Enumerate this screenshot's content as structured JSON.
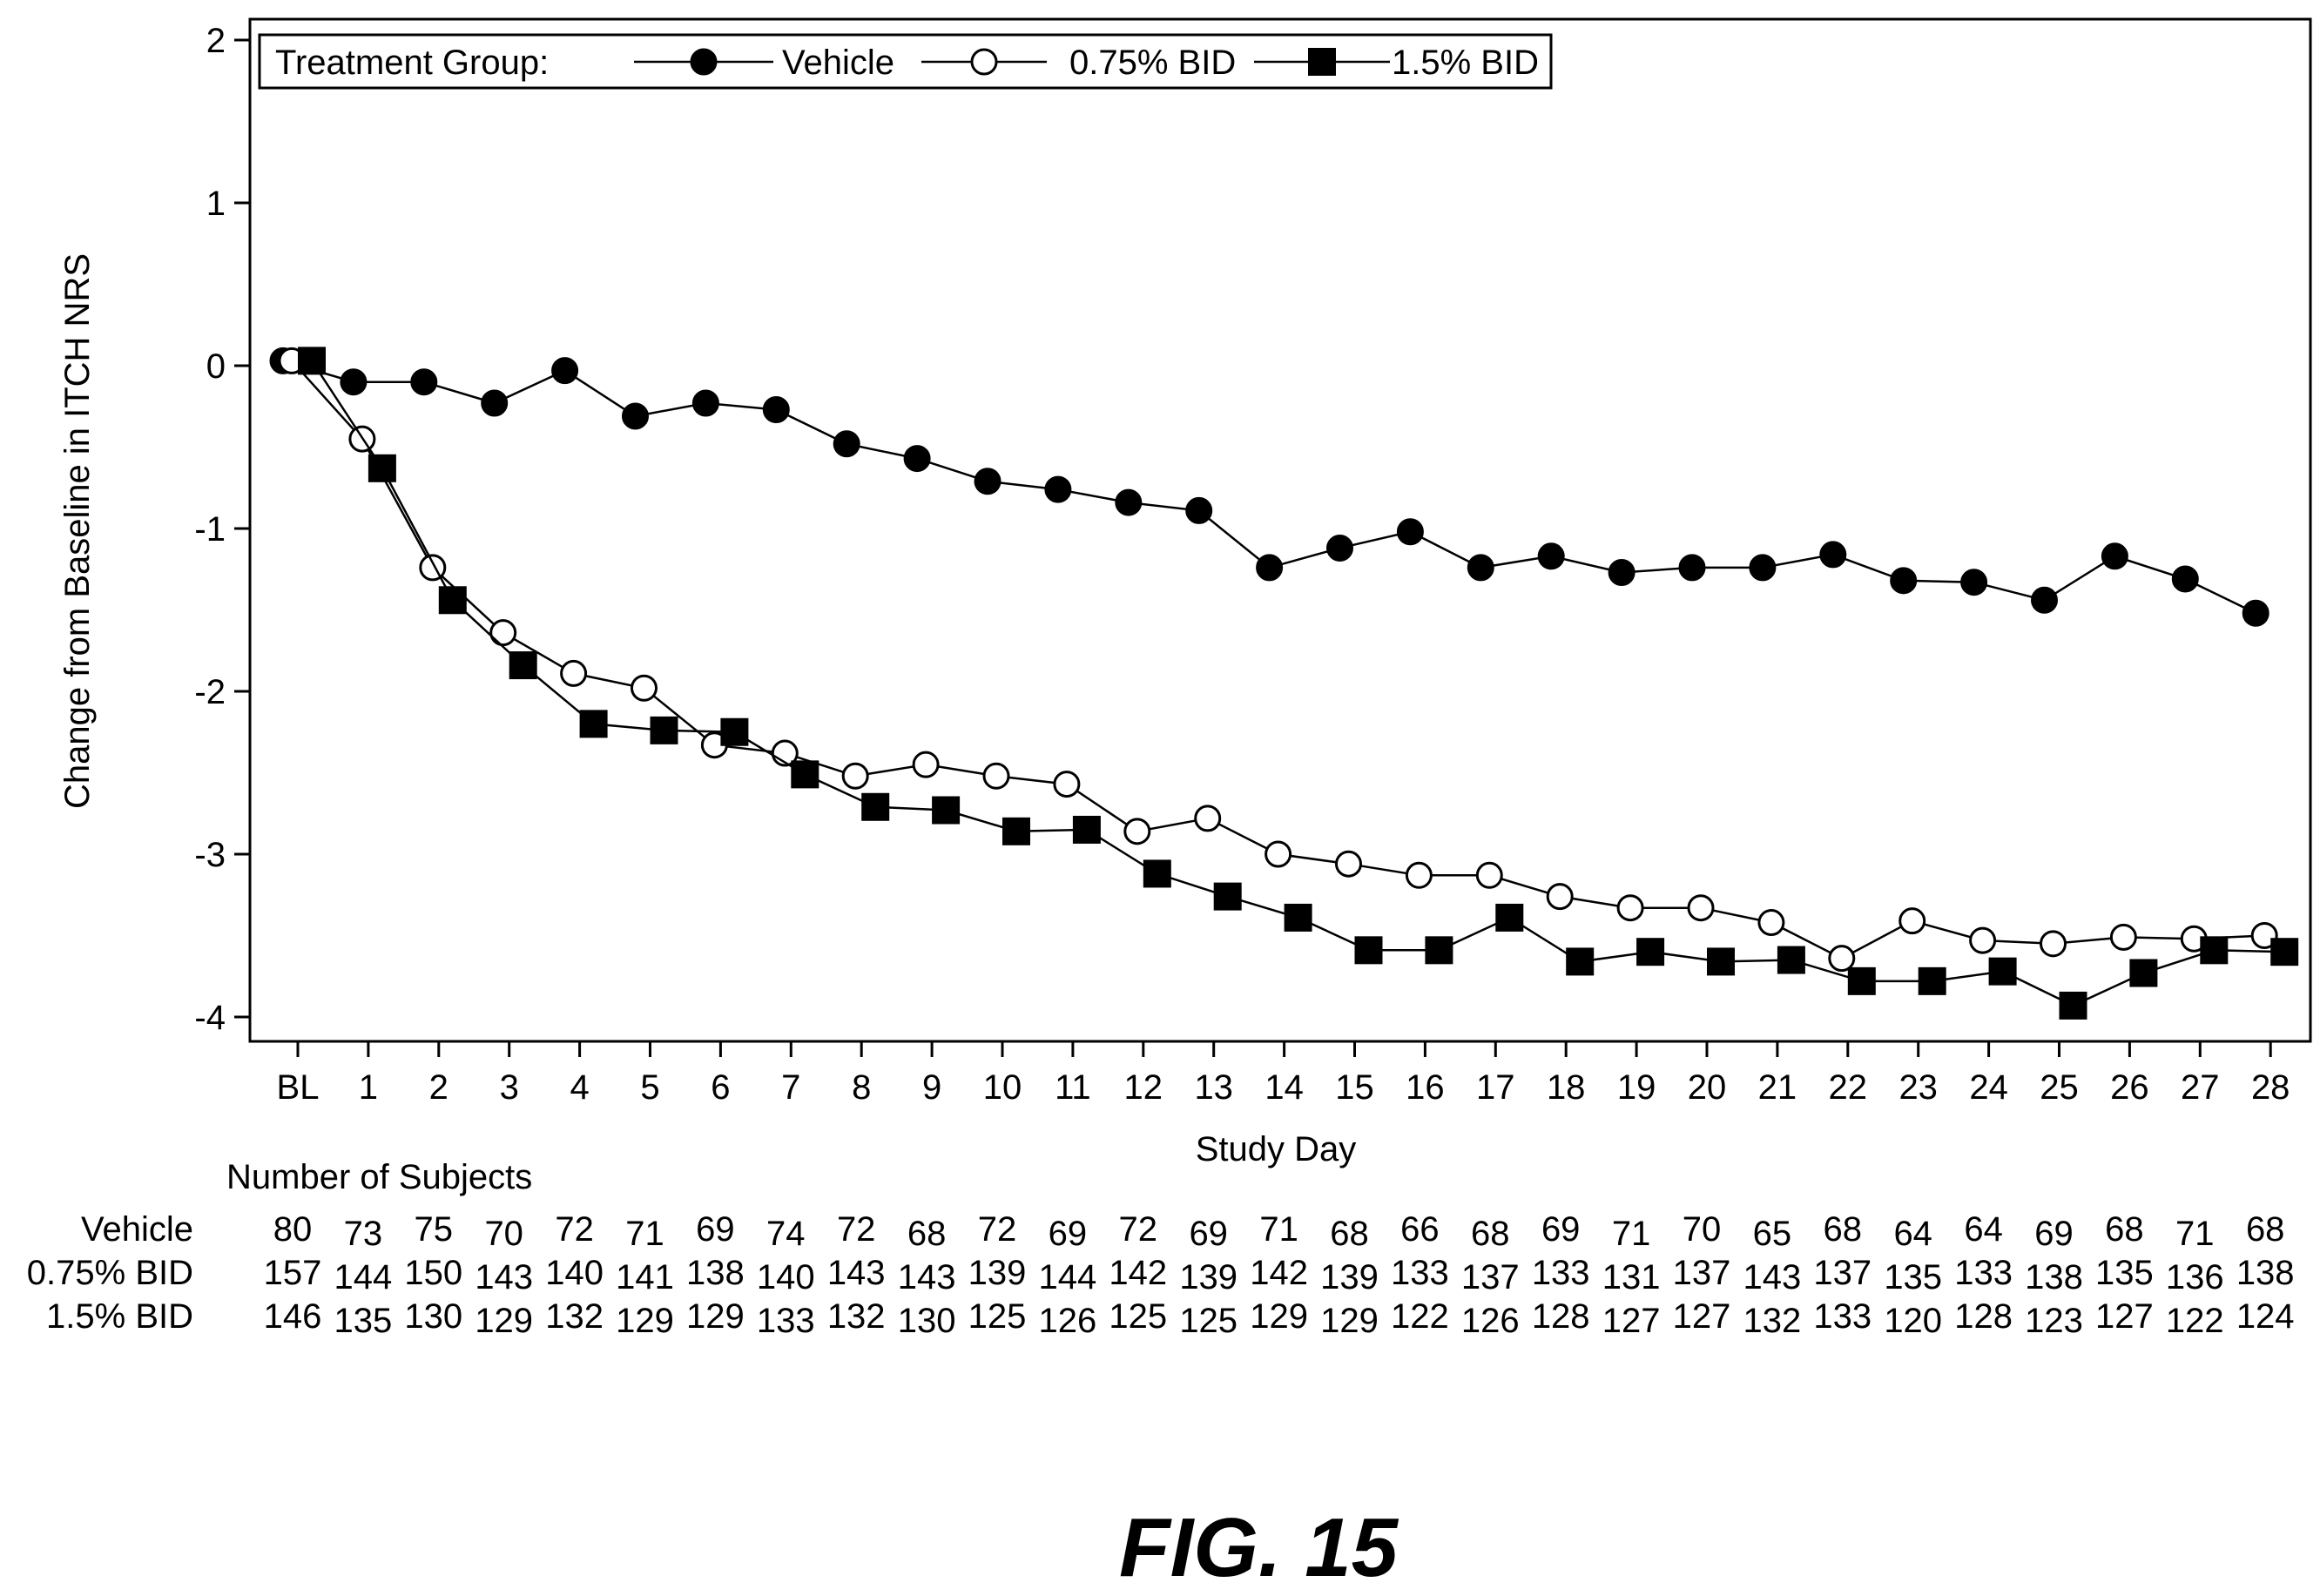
{
  "figure_label": "FIG. 15",
  "colors": {
    "ink": "#000000",
    "paper": "#ffffff"
  },
  "chart_data": {
    "type": "line",
    "xlabel": "Study Day",
    "ylabel": "Change from Baseline in ITCH NRS",
    "ylim": [
      -4,
      2
    ],
    "yticks": [
      "2",
      "1",
      "0",
      "-1",
      "-2",
      "-3",
      "-4"
    ],
    "ytick_values": [
      2,
      1,
      0,
      -1,
      -2,
      -3,
      -4
    ],
    "categories": [
      "BL",
      "1",
      "2",
      "3",
      "4",
      "5",
      "6",
      "7",
      "8",
      "9",
      "10",
      "11",
      "12",
      "13",
      "14",
      "15",
      "16",
      "17",
      "18",
      "19",
      "20",
      "21",
      "22",
      "23",
      "24",
      "25",
      "26",
      "27",
      "28"
    ],
    "legend": {
      "title": "Treatment Group:",
      "placement": "top-left"
    },
    "grid": false,
    "series": [
      {
        "name": "Vehicle",
        "marker": "filled-circle",
        "values": [
          0.03,
          -0.1,
          -0.1,
          -0.23,
          -0.03,
          -0.31,
          -0.23,
          -0.27,
          -0.48,
          -0.57,
          -0.71,
          -0.76,
          -0.84,
          -0.89,
          -1.24,
          -1.12,
          -1.02,
          -1.24,
          -1.17,
          -1.27,
          -1.24,
          -1.24,
          -1.16,
          -1.32,
          -1.33,
          -1.44,
          -1.17,
          -1.31,
          -1.52
        ]
      },
      {
        "name": "0.75% BID",
        "marker": "open-circle",
        "values": [
          0.03,
          -0.45,
          -1.24,
          -1.64,
          -1.89,
          -1.98,
          -2.33,
          -2.38,
          -2.52,
          -2.45,
          -2.52,
          -2.57,
          -2.86,
          -2.78,
          -3.0,
          -3.06,
          -3.13,
          -3.13,
          -3.26,
          -3.33,
          -3.33,
          -3.42,
          -3.64,
          -3.41,
          -3.53,
          -3.55,
          -3.51,
          -3.52,
          -3.5
        ]
      },
      {
        "name": "1.5% BID",
        "marker": "filled-square",
        "values": [
          0.03,
          -0.63,
          -1.44,
          -1.84,
          -2.2,
          -2.24,
          -2.25,
          -2.51,
          -2.71,
          -2.73,
          -2.86,
          -2.85,
          -3.12,
          -3.26,
          -3.39,
          -3.59,
          -3.59,
          -3.39,
          -3.66,
          -3.6,
          -3.66,
          -3.65,
          -3.78,
          -3.78,
          -3.72,
          -3.93,
          -3.73,
          -3.59,
          -3.6
        ]
      }
    ]
  },
  "subjects_table": {
    "title": "Number of Subjects",
    "rows": [
      {
        "label": "Vehicle",
        "counts": [
          "80",
          "73",
          "75",
          "70",
          "72",
          "71",
          "69",
          "74",
          "72",
          "68",
          "72",
          "69",
          "72",
          "69",
          "71",
          "68",
          "66",
          "68",
          "69",
          "71",
          "70",
          "65",
          "68",
          "64",
          "64",
          "69",
          "68",
          "71",
          "68"
        ]
      },
      {
        "label": "0.75%  BID",
        "counts": [
          "157",
          "144",
          "150",
          "143",
          "140",
          "141",
          "138",
          "140",
          "143",
          "143",
          "139",
          "144",
          "142",
          "139",
          "142",
          "139",
          "133",
          "137",
          "133",
          "131",
          "137",
          "143",
          "137",
          "135",
          "133",
          "138",
          "135",
          "136",
          "138"
        ]
      },
      {
        "label": "1.5% BID",
        "counts": [
          "146",
          "135",
          "130",
          "129",
          "132",
          "129",
          "129",
          "133",
          "132",
          "130",
          "125",
          "126",
          "125",
          "125",
          "129",
          "129",
          "122",
          "126",
          "128",
          "127",
          "127",
          "132",
          "133",
          "120",
          "128",
          "123",
          "127",
          "122",
          "124"
        ]
      }
    ]
  }
}
